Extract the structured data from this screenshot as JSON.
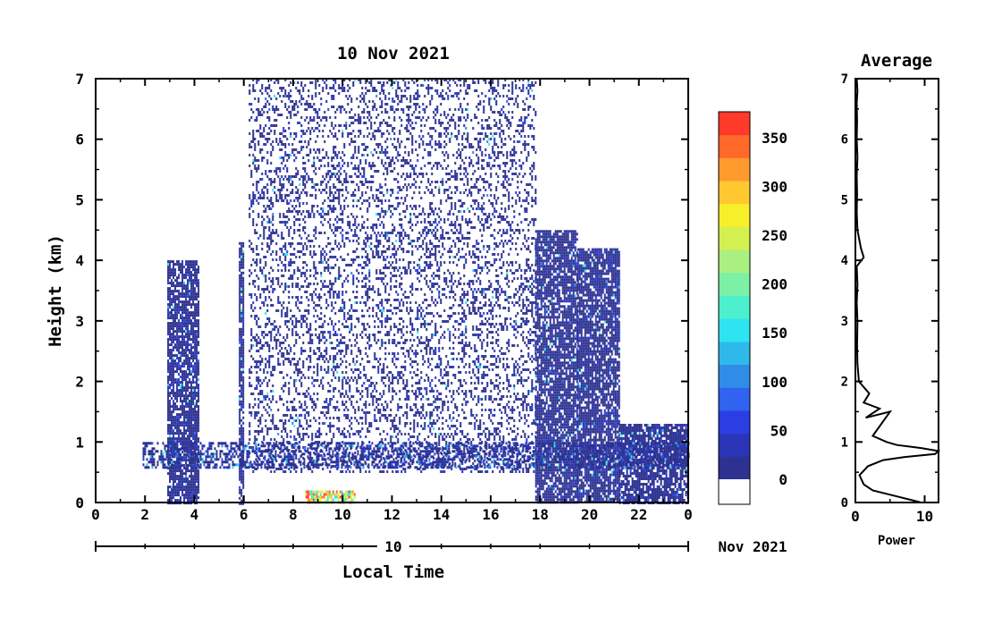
{
  "main_chart": {
    "title": "10 Nov 2021",
    "xlabel": "Local Time",
    "ylabel": "Height (km)",
    "x_ticks": [
      "0",
      "2",
      "4",
      "6",
      "8",
      "10",
      "12",
      "14",
      "16",
      "18",
      "20",
      "22",
      "0"
    ],
    "y_ticks": [
      "0",
      "1",
      "2",
      "3",
      "4",
      "5",
      "6",
      "7"
    ],
    "date_axis_day": "10",
    "date_axis_month": "Nov 2021"
  },
  "colorbar": {
    "labels": [
      "0",
      "50",
      "100",
      "150",
      "200",
      "250",
      "300",
      "350"
    ],
    "colors": [
      "#2d3290",
      "#2a35b8",
      "#2b3ee3",
      "#2f63f0",
      "#2f8de8",
      "#2fb9ea",
      "#2de4f0",
      "#4df0cc",
      "#7cf0a6",
      "#a9f080",
      "#d4f050",
      "#f6f02a",
      "#ffc830",
      "#ff9a2c",
      "#ff6a2a",
      "#ff3a2a"
    ]
  },
  "avg_chart": {
    "title": "Average",
    "xlabel": "Power",
    "x_ticks": [
      "0",
      "10"
    ],
    "y_ticks": [
      "0",
      "1",
      "2",
      "3",
      "4",
      "5",
      "6",
      "7"
    ]
  },
  "chart_data": [
    {
      "type": "heatmap",
      "title": "10 Nov 2021",
      "xlabel": "Local Time",
      "ylabel": "Height (km)",
      "xlim": [
        0,
        24
      ],
      "ylim": [
        0,
        7
      ],
      "colorbar_range": [
        0,
        380
      ],
      "features": [
        {
          "x_range": [
            2.9,
            4.2
          ],
          "height_range": [
            0,
            4.0
          ],
          "level": "low"
        },
        {
          "x_range": [
            5.8,
            6.0
          ],
          "height_range": [
            0,
            4.3
          ],
          "level": "low"
        },
        {
          "x_range": [
            6.2,
            17.8
          ],
          "height_range": [
            0.5,
            7.0
          ],
          "level": "sparse low"
        },
        {
          "x_range": [
            8.5,
            10.5
          ],
          "height_range": [
            0,
            0.2
          ],
          "level": "high"
        },
        {
          "x_range": [
            17.8,
            19.5
          ],
          "height_range": [
            0,
            4.5
          ],
          "level": "low"
        },
        {
          "x_range": [
            19.5,
            21.2
          ],
          "height_range": [
            0,
            4.2
          ],
          "level": "low"
        },
        {
          "x_range": [
            21.2,
            24
          ],
          "height_range": [
            0,
            1.3
          ],
          "level": "low"
        }
      ]
    },
    {
      "type": "line",
      "title": "Average",
      "xlabel": "Power",
      "xlim": [
        0,
        12
      ],
      "ylim": [
        0,
        7
      ],
      "x": [
        9.5,
        6.0,
        2.5,
        1.2,
        0.6,
        1.8,
        4.0,
        7.0,
        11.5,
        12.0,
        9.5,
        6.0,
        4.5,
        2.5,
        5.0,
        1.5,
        3.5,
        1.2,
        2.0,
        0.5,
        0.3,
        0.25,
        0.3,
        0.2,
        0.3,
        0.2,
        1.2,
        0.8,
        0.3,
        0.2,
        0.25,
        0.2,
        0.3,
        0.2,
        0.25,
        0.2,
        0.3,
        0.2
      ],
      "y": [
        0.0,
        0.1,
        0.2,
        0.3,
        0.45,
        0.6,
        0.7,
        0.75,
        0.8,
        0.85,
        0.9,
        0.95,
        1.0,
        1.1,
        1.5,
        1.4,
        1.55,
        1.65,
        1.8,
        2.0,
        2.3,
        2.6,
        3.0,
        3.3,
        3.6,
        3.9,
        4.05,
        4.2,
        4.5,
        4.8,
        5.1,
        5.4,
        5.7,
        6.0,
        6.3,
        6.6,
        6.8,
        7.0
      ]
    }
  ]
}
